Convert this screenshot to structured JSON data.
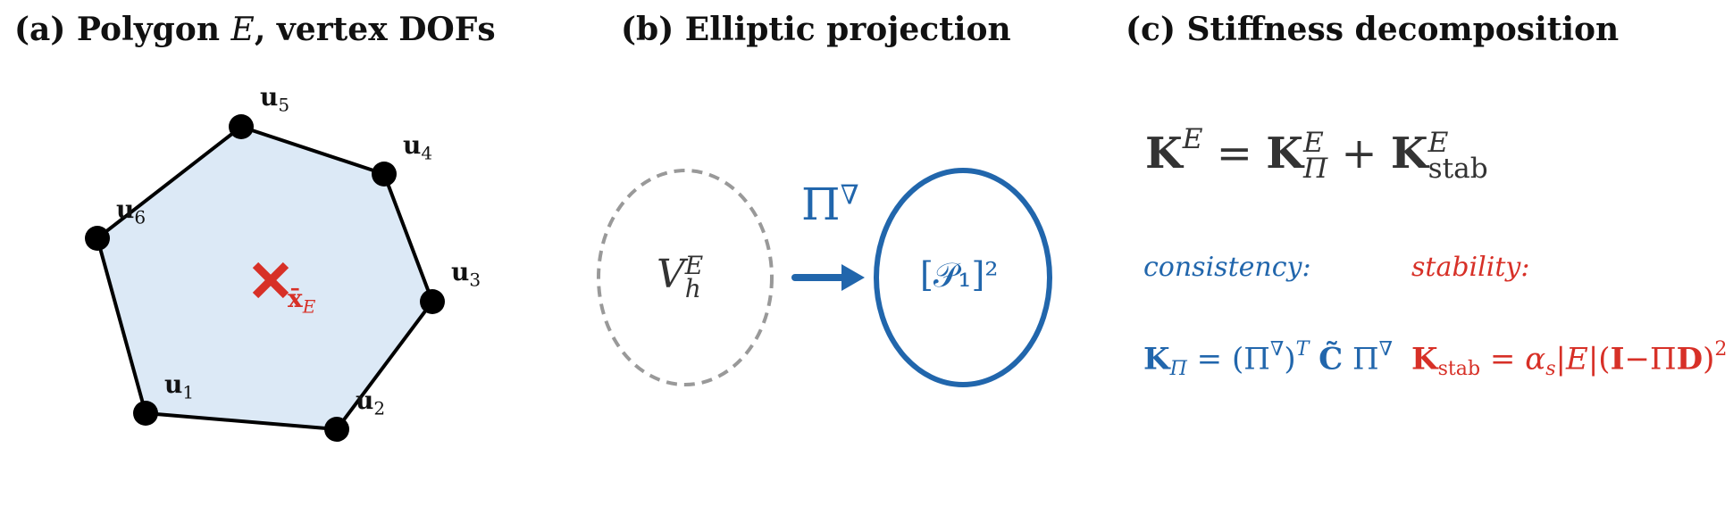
{
  "titles": {
    "a_prefix": "(a) Polygon ",
    "a_var": "E",
    "a_suffix": ", vertex DOFs",
    "b": "(b) Elliptic projection",
    "c": "(c) Stiffness decomposition"
  },
  "panel_a": {
    "vertices": [
      {
        "base": "u",
        "index": "1"
      },
      {
        "base": "u",
        "index": "2"
      },
      {
        "base": "u",
        "index": "3"
      },
      {
        "base": "u",
        "index": "4"
      },
      {
        "base": "u",
        "index": "5"
      },
      {
        "base": "u",
        "index": "6"
      }
    ],
    "centroid_label": {
      "base": "x̄",
      "sub": "E"
    }
  },
  "panel_b": {
    "left_space": {
      "base": "V",
      "sup": "E",
      "sub": "h"
    },
    "right_space": "[𝒫₁]²",
    "operator": {
      "base": "Π",
      "sup": "∇"
    }
  },
  "panel_c": {
    "main_equation": "K^E = K_Π^E + K_stab^E",
    "consistency_label": "consistency:",
    "stability_label": "stability:",
    "consistency_equation": "K_Π = (Π^∇)^T C̃ Π^∇",
    "stability_equation": "K_stab = α_s|E|(I−ΠD)^2"
  },
  "colors": {
    "consistency": "#2166ac",
    "stability": "#d73027",
    "polygon_fill": "#dce9f6",
    "dashed": "#999999",
    "text": "#333333"
  }
}
